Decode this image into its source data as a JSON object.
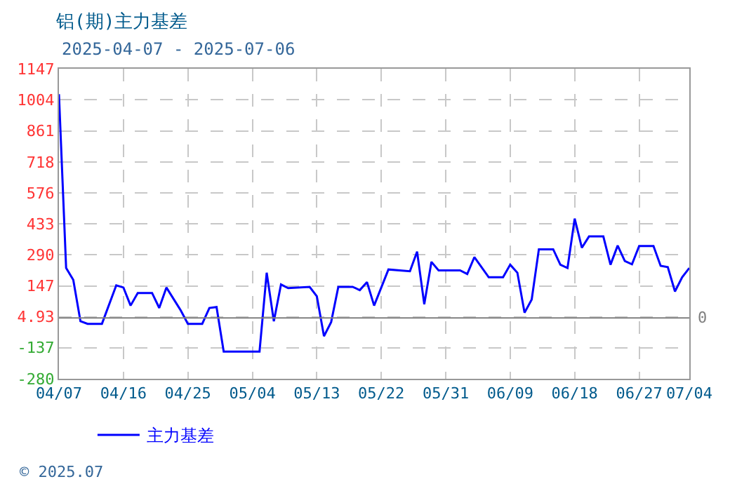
{
  "chart_data": {
    "type": "line",
    "title": "铝(期)主力基差",
    "subtitle": "2025-04-07 - 2025-07-06",
    "x": [
      "2025-04-07",
      "2025-04-08",
      "2025-04-09",
      "2025-04-10",
      "2025-04-11",
      "2025-04-13",
      "2025-04-15",
      "2025-04-16",
      "2025-04-17",
      "2025-04-18",
      "2025-04-20",
      "2025-04-21",
      "2025-04-22",
      "2025-04-24",
      "2025-04-25",
      "2025-04-27",
      "2025-04-28",
      "2025-04-29",
      "2025-04-30",
      "2025-05-05",
      "2025-05-06",
      "2025-05-07",
      "2025-05-08",
      "2025-05-09",
      "2025-05-12",
      "2025-05-13",
      "2025-05-14",
      "2025-05-15",
      "2025-05-16",
      "2025-05-18",
      "2025-05-19",
      "2025-05-20",
      "2025-05-21",
      "2025-05-23",
      "2025-05-26",
      "2025-05-27",
      "2025-05-28",
      "2025-05-29",
      "2025-05-30",
      "2025-06-02",
      "2025-06-03",
      "2025-06-04",
      "2025-06-06",
      "2025-06-08",
      "2025-06-09",
      "2025-06-10",
      "2025-06-11",
      "2025-06-12",
      "2025-06-13",
      "2025-06-15",
      "2025-06-16",
      "2025-06-17",
      "2025-06-18",
      "2025-06-19",
      "2025-06-20",
      "2025-06-22",
      "2025-06-23",
      "2025-06-24",
      "2025-06-25",
      "2025-06-26",
      "2025-06-27",
      "2025-06-29",
      "2025-06-30",
      "2025-07-01",
      "2025-07-02",
      "2025-07-03",
      "2025-07-04"
    ],
    "series": [
      {
        "name": "主力基差",
        "color": "#0000ff",
        "values": [
          1030,
          230,
          175,
          -15,
          -27,
          -27,
          150,
          140,
          57,
          115,
          115,
          46,
          140,
          35,
          -27,
          -27,
          46,
          50,
          -155,
          -155,
          208,
          -15,
          154,
          137,
          143,
          100,
          -84,
          -19,
          143,
          143,
          128,
          165,
          57,
          223,
          215,
          305,
          63,
          258,
          219,
          219,
          202,
          280,
          187,
          187,
          245,
          208,
          24,
          85,
          316,
          316,
          245,
          230,
          457,
          323,
          375,
          375,
          245,
          333,
          262,
          247,
          331,
          331,
          240,
          234,
          122,
          187,
          230
        ]
      }
    ],
    "xlim": [
      "2025-04-07",
      "2025-07-04"
    ],
    "xticks": [
      {
        "value": "2025-04-07",
        "label": "04/07"
      },
      {
        "value": "2025-04-16",
        "label": "04/16"
      },
      {
        "value": "2025-04-25",
        "label": "04/25"
      },
      {
        "value": "2025-05-04",
        "label": "05/04"
      },
      {
        "value": "2025-05-13",
        "label": "05/13"
      },
      {
        "value": "2025-05-22",
        "label": "05/22"
      },
      {
        "value": "2025-05-31",
        "label": "05/31"
      },
      {
        "value": "2025-06-09",
        "label": "06/09"
      },
      {
        "value": "2025-06-18",
        "label": "06/18"
      },
      {
        "value": "2025-06-27",
        "label": "06/27"
      },
      {
        "value": "2025-07-04",
        "label": "07/04"
      }
    ],
    "ylim": [
      -280,
      1147
    ],
    "yticks": [
      -280,
      -137,
      4.93,
      147,
      290,
      433,
      576,
      718,
      861,
      1004,
      1147
    ],
    "ref_lines": [
      {
        "axis": "y",
        "value": 0,
        "label": "0",
        "color": "#808080"
      }
    ],
    "annotations": [
      "© 2025.07"
    ],
    "grid": true,
    "legend": "bottom left",
    "marker": "none",
    "line_style": "solid"
  }
}
